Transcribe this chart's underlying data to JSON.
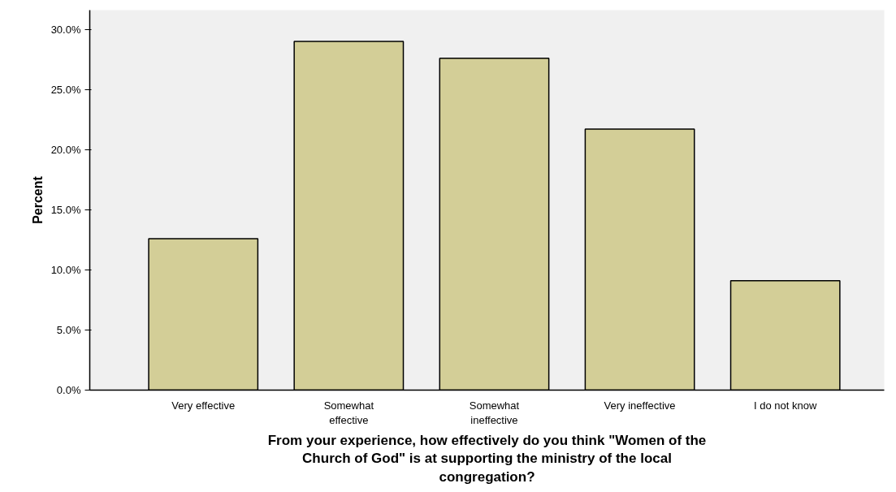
{
  "chart_data": {
    "type": "bar",
    "xlabel": "From your experience, how effectively do you think \"Women of the Church of God\" is at supporting the ministry of the local congregation?",
    "ylabel": "Percent",
    "categories": [
      "Very effective",
      "Somewhat effective",
      "Somewhat ineffective",
      "Very ineffective",
      "I do not know"
    ],
    "values": [
      12.6,
      29.0,
      27.6,
      21.7,
      9.1
    ],
    "color": "#d3ce97",
    "ylim": [
      0,
      31.6
    ],
    "yticks": [
      {
        "value": 0,
        "label": "0.0%"
      },
      {
        "value": 5,
        "label": "5.0%"
      },
      {
        "value": 10,
        "label": "10.0%"
      },
      {
        "value": 15,
        "label": "15.0%"
      },
      {
        "value": 20,
        "label": "20.0%"
      },
      {
        "value": 25,
        "label": "25.0%"
      },
      {
        "value": 30,
        "label": "30.0%"
      }
    ],
    "grid": false
  }
}
